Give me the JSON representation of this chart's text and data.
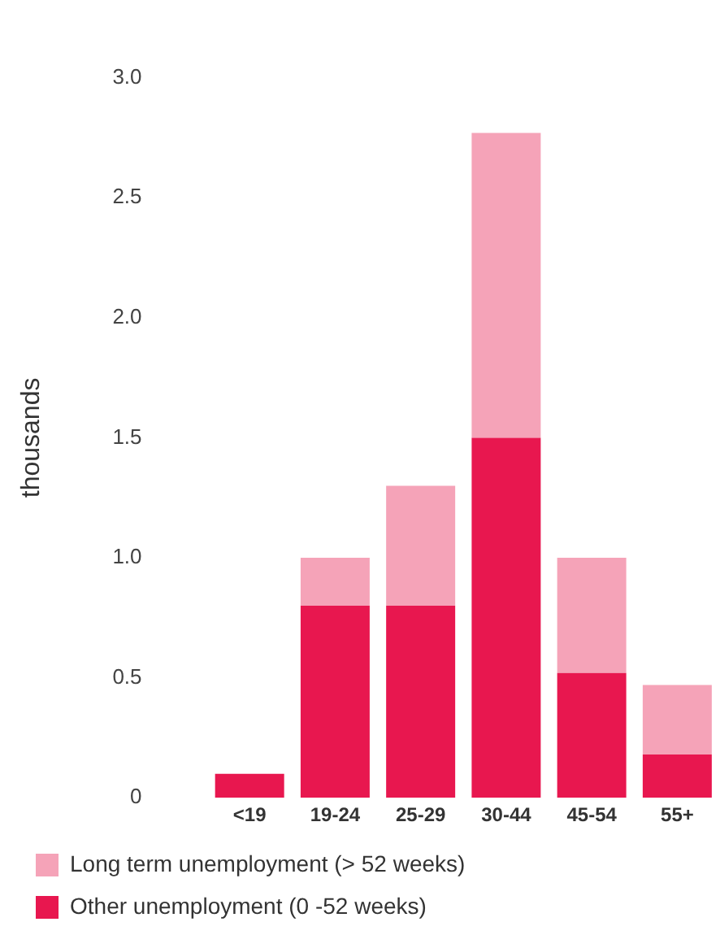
{
  "chart_data": {
    "type": "bar",
    "ylabel": "thousands",
    "categories": [
      "<19",
      "19-24",
      "25-29",
      "30-44",
      "45-54",
      "55+"
    ],
    "stacked": true,
    "series": [
      {
        "name": "Other unemployment (0 -52 weeks)",
        "color": "#e8174f",
        "values": [
          0.1,
          0.8,
          0.8,
          1.5,
          0.52,
          0.18
        ]
      },
      {
        "name": "Long term unemployment (> 52 weeks)",
        "color": "#f5a3b8",
        "values": [
          0,
          0.2,
          0.5,
          1.27,
          0.48,
          0.29
        ]
      }
    ],
    "ylim": [
      0,
      3
    ],
    "yticks": [
      {
        "value": 0,
        "label": "0"
      },
      {
        "value": 0.5,
        "label": "0.5"
      },
      {
        "value": 1,
        "label": "1.0"
      },
      {
        "value": 1.5,
        "label": "1.5"
      },
      {
        "value": 2,
        "label": "2.0"
      },
      {
        "value": 2.5,
        "label": "2.5"
      },
      {
        "value": 3,
        "label": "3.0"
      }
    ],
    "grid": false,
    "legend": "bottom"
  }
}
